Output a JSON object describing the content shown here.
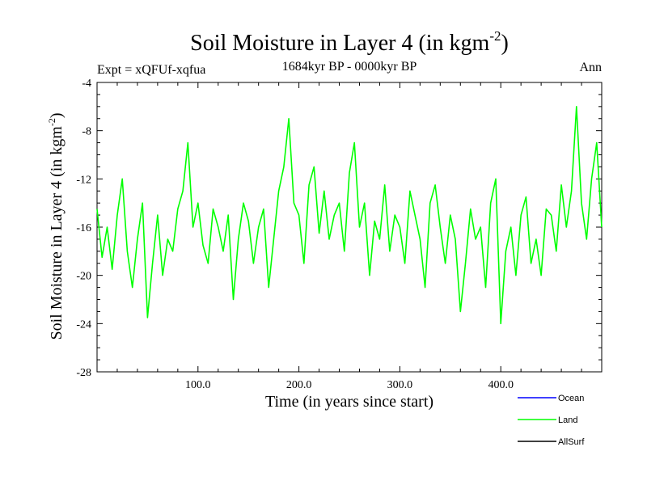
{
  "chart_data": {
    "type": "line",
    "title_main": "Soil Moisture in Layer 4 (in kgm",
    "title_sup": "-2",
    "title_close": ")",
    "subtitle": "1684kyr BP - 0000kyr BP",
    "experiment": "Expt = xQFUf-xqfua",
    "season": "Ann",
    "xlabel": "Time (in years since start)",
    "ylabel_main": "Soil Moisture in Layer 4 (in kgm",
    "ylabel_sup": "-2",
    "ylabel_close": ")",
    "xlim": [
      0,
      500
    ],
    "ylim": [
      -28,
      -4
    ],
    "xticks": [
      100,
      200,
      300,
      400
    ],
    "xtick_labels": [
      "100.0",
      "200.0",
      "300.0",
      "400.0"
    ],
    "yticks": [
      -4,
      -8,
      -12,
      -16,
      -20,
      -24,
      -28
    ],
    "ytick_labels": [
      "-4",
      "-8",
      "-12",
      "-16",
      "-20",
      "-24",
      "-28"
    ],
    "legend": [
      {
        "name": "Ocean",
        "color": "#0000ff"
      },
      {
        "name": "Land",
        "color": "#00ff00"
      },
      {
        "name": "AllSurf",
        "color": "#000000"
      }
    ],
    "series": [
      {
        "name": "Land",
        "color": "#00ff00",
        "x": [
          0,
          5,
          10,
          15,
          20,
          25,
          30,
          35,
          40,
          45,
          50,
          55,
          60,
          65,
          70,
          75,
          80,
          85,
          90,
          95,
          100,
          105,
          110,
          115,
          120,
          125,
          130,
          135,
          140,
          145,
          150,
          155,
          160,
          165,
          170,
          175,
          180,
          185,
          190,
          195,
          200,
          205,
          210,
          215,
          220,
          225,
          230,
          235,
          240,
          245,
          250,
          255,
          260,
          265,
          270,
          275,
          280,
          285,
          290,
          295,
          300,
          305,
          310,
          315,
          320,
          325,
          330,
          335,
          340,
          345,
          350,
          355,
          360,
          365,
          370,
          375,
          380,
          385,
          390,
          395,
          400,
          405,
          410,
          415,
          420,
          425,
          430,
          435,
          440,
          445,
          450,
          455,
          460,
          465,
          470,
          475,
          480,
          485,
          490,
          495,
          500
        ],
        "values": [
          -14.5,
          -18.5,
          -16,
          -19.5,
          -15,
          -12,
          -18,
          -21,
          -17,
          -14,
          -23.5,
          -19,
          -15,
          -20,
          -17,
          -18,
          -14.5,
          -13,
          -9,
          -16,
          -14,
          -17.5,
          -19,
          -14.5,
          -16,
          -18,
          -15,
          -22,
          -17,
          -14,
          -15.5,
          -19,
          -16,
          -14.5,
          -21,
          -17,
          -13,
          -11,
          -7,
          -14,
          -15,
          -19,
          -12.5,
          -11,
          -16.5,
          -13,
          -17,
          -15,
          -14,
          -18,
          -11.5,
          -9,
          -16,
          -14,
          -20,
          -15.5,
          -17,
          -12.5,
          -18,
          -15,
          -16,
          -19,
          -13,
          -15,
          -17,
          -21,
          -14,
          -12.5,
          -16,
          -19,
          -15,
          -17,
          -23,
          -19,
          -14.5,
          -17,
          -16,
          -21,
          -14,
          -12,
          -24,
          -18,
          -16,
          -20,
          -15,
          -13.5,
          -19,
          -17,
          -20,
          -14.5,
          -15,
          -18,
          -12.5,
          -16,
          -13,
          -6,
          -14,
          -17,
          -12,
          -9,
          -16
        ]
      }
    ]
  }
}
